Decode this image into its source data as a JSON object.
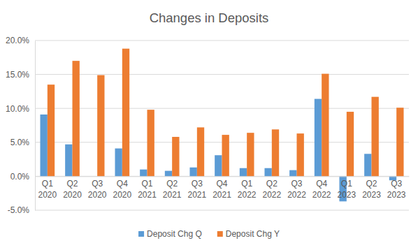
{
  "chart_data": {
    "type": "bar",
    "title": "Changes in Deposits",
    "categories": [
      "Q1 2020",
      "Q2 2020",
      "Q3 2020",
      "Q4 2020",
      "Q1 2021",
      "Q2 2021",
      "Q3 2021",
      "Q4 2021",
      "Q1 2022",
      "Q2 2022",
      "Q3 2022",
      "Q4 2022",
      "Q1 2023",
      "Q2 2023",
      "Q3 2023"
    ],
    "series": [
      {
        "name": "Deposit Chg Q",
        "color": "#5b9bd5",
        "values": [
          9.1,
          4.7,
          0.0,
          4.1,
          1.0,
          0.8,
          1.3,
          3.1,
          1.2,
          1.2,
          0.9,
          11.4,
          -3.7,
          3.3,
          -0.6
        ]
      },
      {
        "name": "Deposit Chg Y",
        "color": "#ed7d31",
        "values": [
          13.5,
          17.0,
          14.9,
          18.8,
          9.8,
          5.8,
          7.2,
          6.1,
          6.4,
          6.9,
          6.3,
          15.1,
          9.5,
          11.7,
          10.1
        ]
      }
    ],
    "ylim": [
      -5,
      20
    ],
    "yticks": [
      {
        "value": -5,
        "label": "-5.0%"
      },
      {
        "value": 0,
        "label": "0.0%"
      },
      {
        "value": 5,
        "label": "5.0%"
      },
      {
        "value": 10,
        "label": "10.0%"
      },
      {
        "value": 15,
        "label": "15.0%"
      },
      {
        "value": 20,
        "label": "20.0%"
      }
    ],
    "grid": true,
    "legend": "bottom"
  }
}
